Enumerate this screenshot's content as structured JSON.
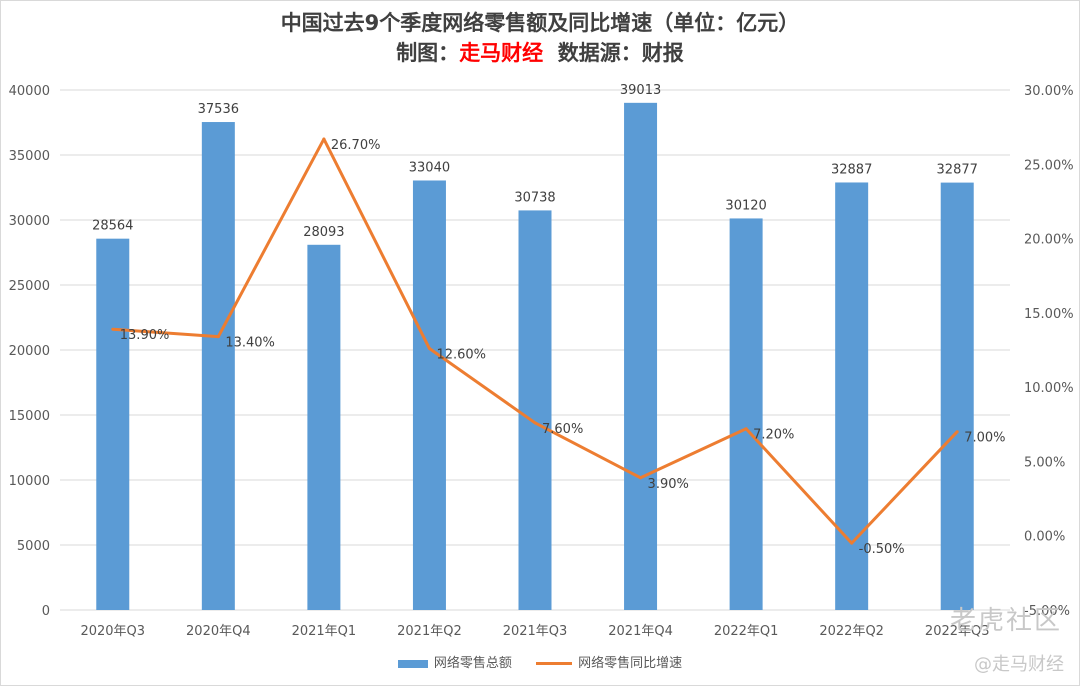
{
  "chart_data": {
    "type": "bar+line",
    "title": "中国过去9个季度网络零售额及同比增速（单位：亿元）",
    "subtitle_prefix": "制图：",
    "subtitle_brand": "走马财经",
    "subtitle_suffix": "  数据源：财报",
    "categories": [
      "2020年Q3",
      "2020年Q4",
      "2021年Q1",
      "2021年Q2",
      "2021年Q3",
      "2021年Q4",
      "2022年Q1",
      "2022年Q2",
      "2022年Q3"
    ],
    "series": [
      {
        "name": "网络零售总额",
        "type": "bar",
        "axis": "left",
        "color": "#5b9bd5",
        "values": [
          28564,
          37536,
          28093,
          33040,
          30738,
          39013,
          30120,
          32887,
          32877
        ]
      },
      {
        "name": "网络零售同比增速",
        "type": "line",
        "axis": "right",
        "color": "#ed7d31",
        "values": [
          13.9,
          13.4,
          26.7,
          12.6,
          7.6,
          3.9,
          7.2,
          -0.5,
          7.0
        ],
        "labels": [
          "13.90%",
          "13.40%",
          "26.70%",
          "12.60%",
          "7.60%",
          "3.90%",
          "7.20%",
          "-0.50%",
          "7.00%"
        ]
      }
    ],
    "y_left": {
      "min": 0,
      "max": 40000,
      "ticks": [
        "0",
        "5000",
        "10000",
        "15000",
        "20000",
        "25000",
        "30000",
        "35000",
        "40000"
      ]
    },
    "y_right": {
      "min": -5,
      "max": 30,
      "ticks": [
        "-5.00%",
        "0.00%",
        "5.00%",
        "10.00%",
        "15.00%",
        "20.00%",
        "25.00%",
        "30.00%"
      ]
    },
    "grid": true,
    "legend_position": "bottom"
  },
  "watermark": {
    "text1": "老虎社区",
    "text2": "@走马财经"
  }
}
